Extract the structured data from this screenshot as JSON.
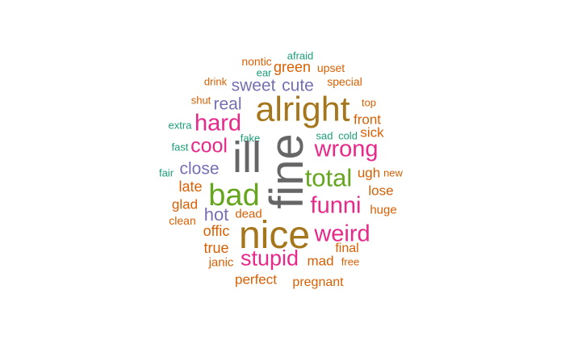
{
  "palette": {
    "teal": "#1b9e77",
    "orange": "#d95f02",
    "purple": "#7570b3",
    "magenta": "#e7298a",
    "green": "#66a61e",
    "gold": "#a6761d",
    "gray": "#666666"
  },
  "words": [
    {
      "text": "afraid",
      "color": "#1b9e77"
    },
    {
      "text": "nontic",
      "color": "#d95f02"
    },
    {
      "text": "green",
      "color": "#d95f02"
    },
    {
      "text": "upset",
      "color": "#d95f02"
    },
    {
      "text": "ear",
      "color": "#1b9e77"
    },
    {
      "text": "drink",
      "color": "#d95f02"
    },
    {
      "text": "sweet",
      "color": "#7570b3"
    },
    {
      "text": "cute",
      "color": "#7570b3"
    },
    {
      "text": "special",
      "color": "#d95f02"
    },
    {
      "text": "shut",
      "color": "#d95f02"
    },
    {
      "text": "real",
      "color": "#7570b3"
    },
    {
      "text": "alright",
      "color": "#a6761d"
    },
    {
      "text": "top",
      "color": "#d95f02"
    },
    {
      "text": "hard",
      "color": "#e7298a"
    },
    {
      "text": "front",
      "color": "#d95f02"
    },
    {
      "text": "extra",
      "color": "#1b9e77"
    },
    {
      "text": "sad",
      "color": "#1b9e77"
    },
    {
      "text": "cold",
      "color": "#1b9e77"
    },
    {
      "text": "sick",
      "color": "#d95f02"
    },
    {
      "text": "fake",
      "color": "#1b9e77"
    },
    {
      "text": "fast",
      "color": "#1b9e77"
    },
    {
      "text": "cool",
      "color": "#e7298a"
    },
    {
      "text": "ill",
      "color": "#666666"
    },
    {
      "text": "fine",
      "color": "#666666"
    },
    {
      "text": "wrong",
      "color": "#e7298a"
    },
    {
      "text": "close",
      "color": "#7570b3"
    },
    {
      "text": "fair",
      "color": "#1b9e77"
    },
    {
      "text": "total",
      "color": "#66a61e"
    },
    {
      "text": "ugh",
      "color": "#d95f02"
    },
    {
      "text": "new",
      "color": "#d95f02"
    },
    {
      "text": "late",
      "color": "#d95f02"
    },
    {
      "text": "bad",
      "color": "#66a61e"
    },
    {
      "text": "lose",
      "color": "#d95f02"
    },
    {
      "text": "glad",
      "color": "#d95f02"
    },
    {
      "text": "funni",
      "color": "#e7298a"
    },
    {
      "text": "huge",
      "color": "#d95f02"
    },
    {
      "text": "hot",
      "color": "#7570b3"
    },
    {
      "text": "dead",
      "color": "#d95f02"
    },
    {
      "text": "clean",
      "color": "#d95f02"
    },
    {
      "text": "offic",
      "color": "#d95f02"
    },
    {
      "text": "nice",
      "color": "#a6761d"
    },
    {
      "text": "weird",
      "color": "#e7298a"
    },
    {
      "text": "true",
      "color": "#d95f02"
    },
    {
      "text": "final",
      "color": "#d95f02"
    },
    {
      "text": "stupid",
      "color": "#e7298a"
    },
    {
      "text": "janic",
      "color": "#d95f02"
    },
    {
      "text": "mad",
      "color": "#d95f02"
    },
    {
      "text": "free",
      "color": "#d95f02"
    },
    {
      "text": "perfect",
      "color": "#d95f02"
    },
    {
      "text": "pregnant",
      "color": "#d95f02"
    }
  ]
}
